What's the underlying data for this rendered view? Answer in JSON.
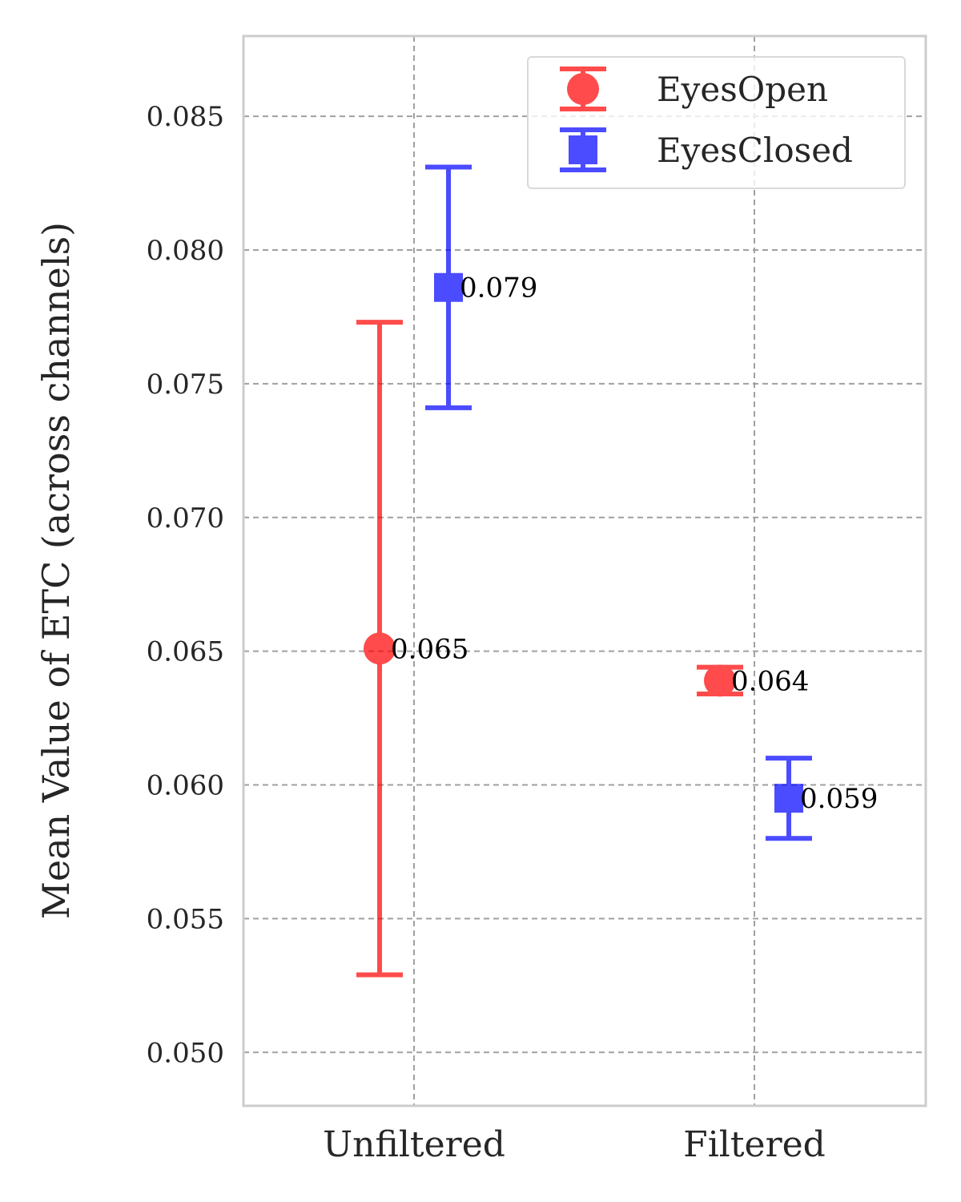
{
  "chart_data": {
    "type": "scatter",
    "categories": [
      "Unfiltered",
      "Filtered"
    ],
    "ylabel": "Mean Value of ETC (across channels)",
    "xlabel": "",
    "ylim": [
      0.048,
      0.088
    ],
    "yticks": [
      "0.050",
      "0.055",
      "0.060",
      "0.065",
      "0.070",
      "0.075",
      "0.080",
      "0.085"
    ],
    "grid": true,
    "legend_position": "top-right",
    "series": [
      {
        "name": "EyesOpen",
        "color": "#ff0000",
        "marker": "circle",
        "values": [
          0.0651,
          0.0639
        ],
        "error": [
          0.0122,
          0.0005
        ],
        "labels": [
          "0.065",
          "0.064"
        ]
      },
      {
        "name": "EyesClosed",
        "color": "#0000ff",
        "marker": "square",
        "values": [
          0.0786,
          0.0595
        ],
        "error": [
          0.0045,
          0.0015
        ],
        "labels": [
          "0.079",
          "0.059"
        ]
      }
    ]
  }
}
